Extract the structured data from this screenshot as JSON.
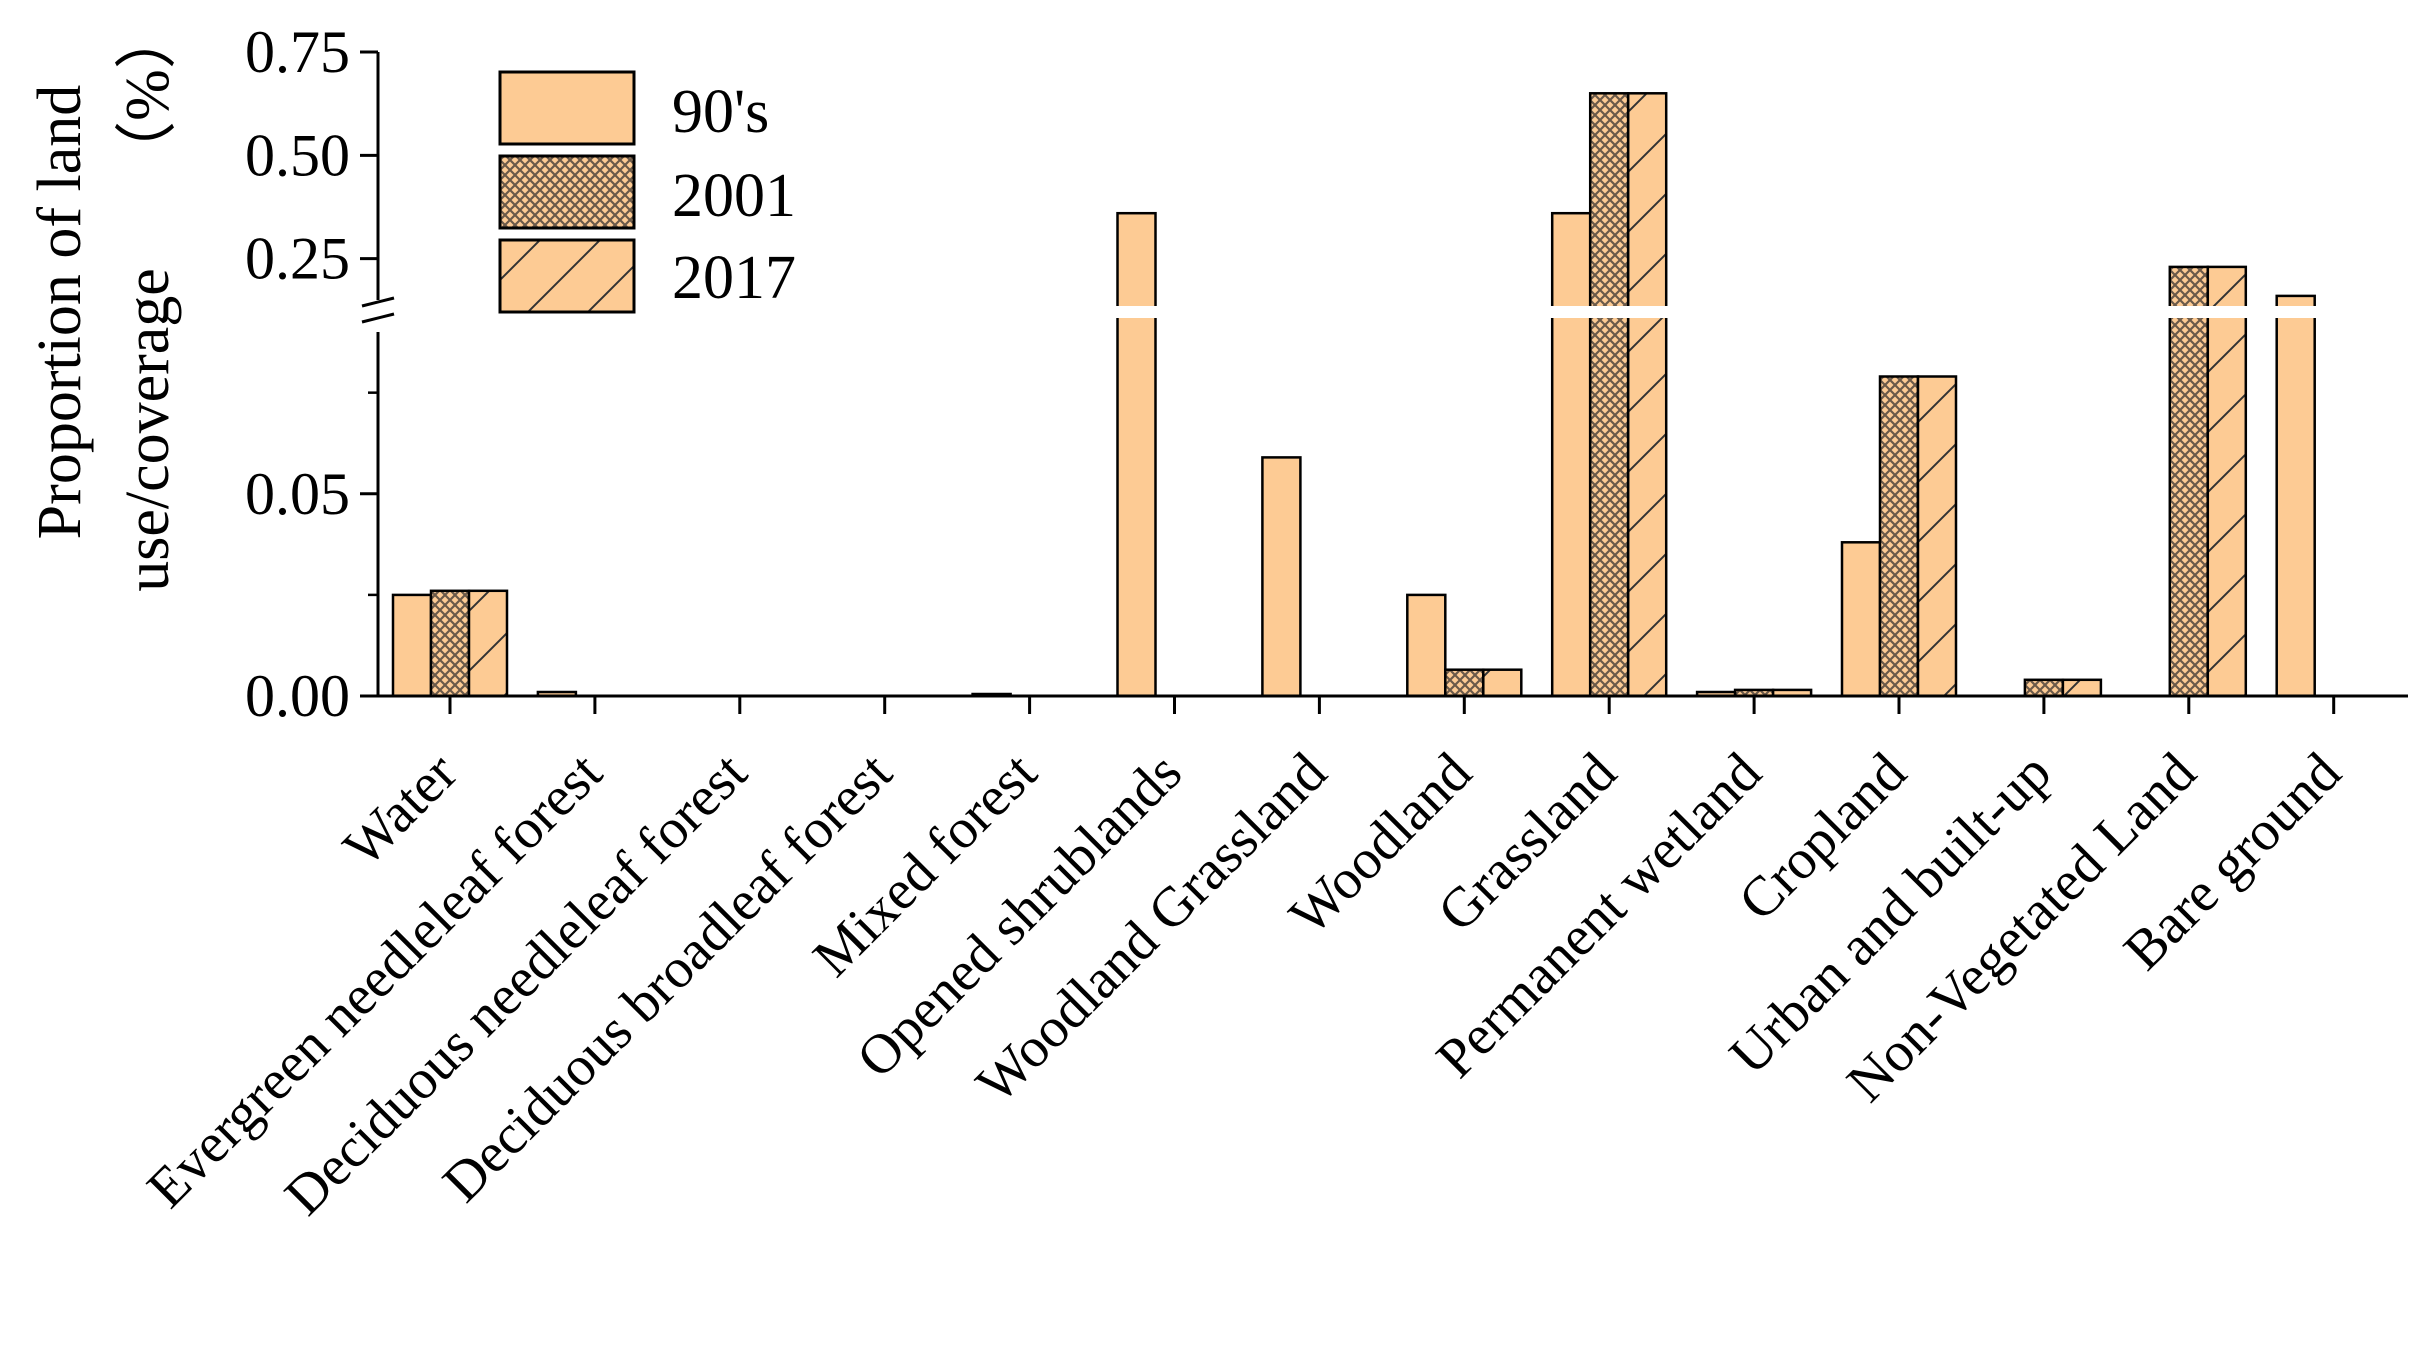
{
  "chart_data": {
    "type": "bar",
    "ylabel_line1": "Proportion of land",
    "ylabel_line2": "use/coverage",
    "ylabel_unit": "（%）",
    "xlabel": "",
    "axis_break": true,
    "lower_ylim": [
      0.0,
      0.09
    ],
    "upper_ylim": [
      0.15,
      0.75
    ],
    "lower_ticks": [
      {
        "value": 0.0,
        "label": "0.00"
      },
      {
        "value": 0.05,
        "label": "0.05"
      }
    ],
    "upper_ticks": [
      {
        "value": 0.25,
        "label": "0.25"
      },
      {
        "value": 0.5,
        "label": "0.50"
      },
      {
        "value": 0.75,
        "label": "0.75"
      }
    ],
    "legend_position": "top-left",
    "categories": [
      "Water",
      "Evergreen needleleaf forest",
      "Deciduous needleleaf forest",
      "Deciduous broadleaf forest",
      "Mixed forest",
      "Opened shrublands",
      "Woodland Grassland",
      "Woodland",
      "Grassland",
      "Permanent wetland",
      "Cropland",
      "Urban and built-up",
      "Non-Vegetated Land",
      "Bare ground"
    ],
    "series": [
      {
        "name": "90's",
        "pattern": "solid",
        "values": [
          0.025,
          0.001,
          0,
          0,
          0.0005,
          0.36,
          0.059,
          0.025,
          0.36,
          0.001,
          0.038,
          0,
          0,
          0.16
        ]
      },
      {
        "name": "2001",
        "pattern": "crosshatch",
        "values": [
          0.026,
          0,
          0,
          0,
          0,
          0,
          0,
          0.0065,
          0.65,
          0.0015,
          0.079,
          0.004,
          0.23,
          0
        ]
      },
      {
        "name": "2017",
        "pattern": "diagonal",
        "values": [
          0.026,
          0,
          0,
          0,
          0,
          0,
          0,
          0.0065,
          0.65,
          0.0015,
          0.079,
          0.004,
          0.23,
          0
        ]
      }
    ],
    "colors": {
      "fill": "#FDCB94",
      "stroke": "#000000",
      "hatch": "#6b5a4a"
    }
  }
}
